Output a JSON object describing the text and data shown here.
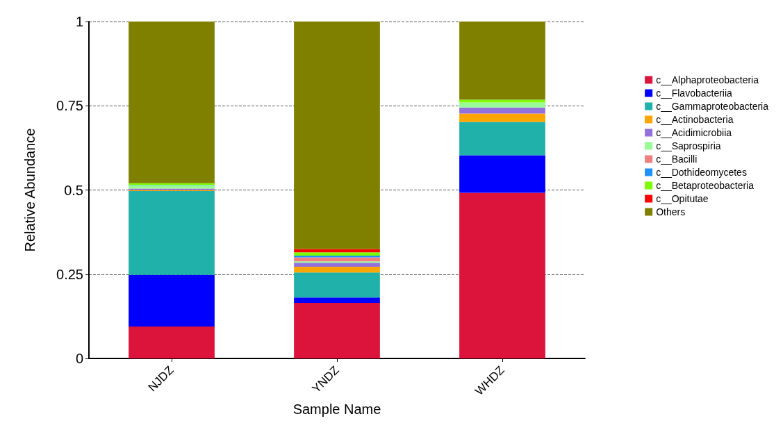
{
  "chart_data": {
    "type": "bar",
    "stacked": true,
    "xlabel": "Sample Name",
    "ylabel": "Relative Abundance",
    "categories": [
      "NJDZ",
      "YNDZ",
      "WHDZ"
    ],
    "ylim": [
      0,
      1
    ],
    "yticks": [
      0,
      0.25,
      0.5,
      0.75,
      1
    ],
    "grid": "y",
    "legend": "right",
    "series": [
      {
        "name": "c__Alphaproteobacteria",
        "color": "#dc143c",
        "values": [
          0.095,
          0.165,
          0.492
        ]
      },
      {
        "name": "c__Flavobacteriia",
        "color": "#0000ff",
        "values": [
          0.153,
          0.016,
          0.111
        ]
      },
      {
        "name": "c__Gammaproteobacteria",
        "color": "#20b2aa",
        "values": [
          0.249,
          0.074,
          0.099
        ]
      },
      {
        "name": "c__Actinobacteria",
        "color": "#ffa500",
        "values": [
          0.003,
          0.017,
          0.025
        ]
      },
      {
        "name": "c__Acidimicrobiia",
        "color": "#9370db",
        "values": [
          0.004,
          0.012,
          0.018
        ]
      },
      {
        "name": "c__Saprospiria",
        "color": "#98fb98",
        "values": [
          0.01,
          0.004,
          0.015
        ]
      },
      {
        "name": "c__Bacilli",
        "color": "#f08080",
        "values": [
          null,
          0.012,
          0
        ]
      },
      {
        "name": "c__Dothideomycetes",
        "color": "#1e90ff",
        "values": [
          0.001,
          0.005,
          0
        ]
      },
      {
        "name": "c__Betaproteobacteria",
        "color": "#7cfc00",
        "values": [
          0.005,
          0.01,
          0.008
        ]
      },
      {
        "name": "c__Opitutae",
        "color": "#ff0000",
        "values": [
          0,
          0.01,
          0
        ]
      },
      {
        "name": "Others",
        "color": "#808000",
        "values": [
          0.48,
          0.675,
          0.232
        ]
      }
    ]
  }
}
